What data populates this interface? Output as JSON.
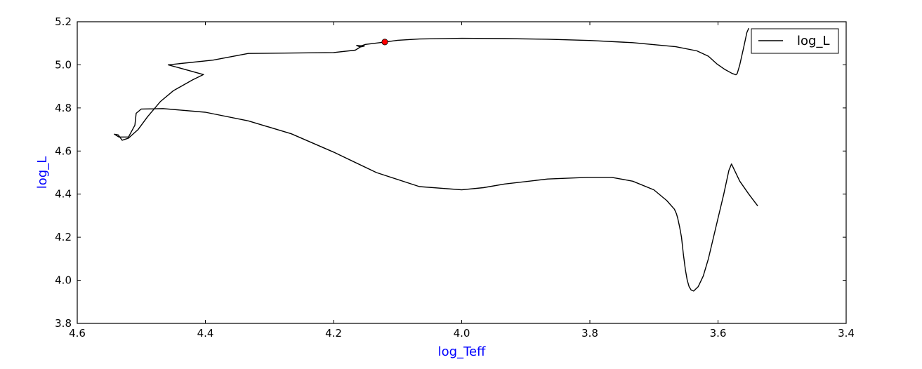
{
  "chart_data": {
    "type": "line",
    "xlabel": "log_Teff",
    "ylabel": "log_L",
    "label_color": "#0000ff",
    "line_color": "#000000",
    "marker_color": "#ff0000",
    "xlim": [
      4.6,
      3.4
    ],
    "ylim": [
      3.8,
      5.2
    ],
    "x_inverted": true,
    "x_ticks": [
      4.6,
      4.4,
      4.2,
      4.0,
      3.8,
      3.6,
      3.4
    ],
    "x_tick_labels": [
      "4.6",
      "4.4",
      "4.2",
      "4.0",
      "3.8",
      "3.6",
      "3.4"
    ],
    "y_ticks": [
      3.8,
      4.0,
      4.2,
      4.4,
      4.6,
      4.8,
      5.0,
      5.2
    ],
    "y_tick_labels": [
      "3.8",
      "4.0",
      "4.2",
      "4.4",
      "4.6",
      "4.8",
      "5.0",
      "5.2"
    ],
    "grid": false,
    "legend_position": "top-right",
    "series": [
      {
        "name": "log_L",
        "x": [
          3.538,
          3.552,
          3.566,
          3.579,
          3.583,
          3.591,
          3.599,
          3.607,
          3.615,
          3.623,
          3.631,
          3.638,
          3.642,
          3.645,
          3.648,
          3.651,
          3.654,
          3.657,
          3.66,
          3.663,
          3.665,
          3.668,
          3.68,
          3.7,
          3.733,
          3.766,
          3.803,
          3.866,
          3.933,
          3.966,
          4.0,
          4.066,
          4.133,
          4.2,
          4.266,
          4.333,
          4.4,
          4.466,
          4.5,
          4.508,
          4.51,
          4.52,
          4.535,
          4.542,
          4.536,
          4.53,
          4.52,
          4.505,
          4.49,
          4.47,
          4.45,
          4.42,
          4.403,
          4.458,
          4.388,
          4.333,
          4.2,
          4.166,
          4.158,
          4.152,
          4.164,
          4.16,
          4.15,
          4.12,
          4.1,
          4.066,
          4.0,
          3.933,
          3.866,
          3.8,
          3.733,
          3.666,
          3.633,
          3.615,
          3.602,
          3.59,
          3.578,
          3.572,
          3.57,
          3.566,
          3.56,
          3.555,
          3.552
        ],
        "y": [
          4.345,
          4.4,
          4.46,
          4.54,
          4.51,
          4.4,
          4.3,
          4.2,
          4.1,
          4.02,
          3.97,
          3.95,
          3.955,
          3.97,
          4.0,
          4.05,
          4.12,
          4.2,
          4.25,
          4.29,
          4.31,
          4.33,
          4.37,
          4.42,
          4.46,
          4.478,
          4.478,
          4.47,
          4.447,
          4.43,
          4.42,
          4.435,
          4.5,
          4.595,
          4.68,
          4.74,
          4.78,
          4.797,
          4.795,
          4.775,
          4.72,
          4.665,
          4.665,
          4.678,
          4.675,
          4.65,
          4.66,
          4.7,
          4.76,
          4.83,
          4.88,
          4.93,
          4.955,
          5.0,
          5.022,
          5.053,
          5.057,
          5.068,
          5.083,
          5.087,
          5.09,
          5.085,
          5.095,
          5.106,
          5.114,
          5.12,
          5.123,
          5.122,
          5.119,
          5.113,
          5.103,
          5.084,
          5.065,
          5.04,
          5.005,
          4.98,
          4.96,
          4.954,
          4.96,
          5.0,
          5.08,
          5.15,
          5.17
        ]
      }
    ],
    "markers": [
      {
        "x": 4.12,
        "y": 5.106
      }
    ]
  }
}
